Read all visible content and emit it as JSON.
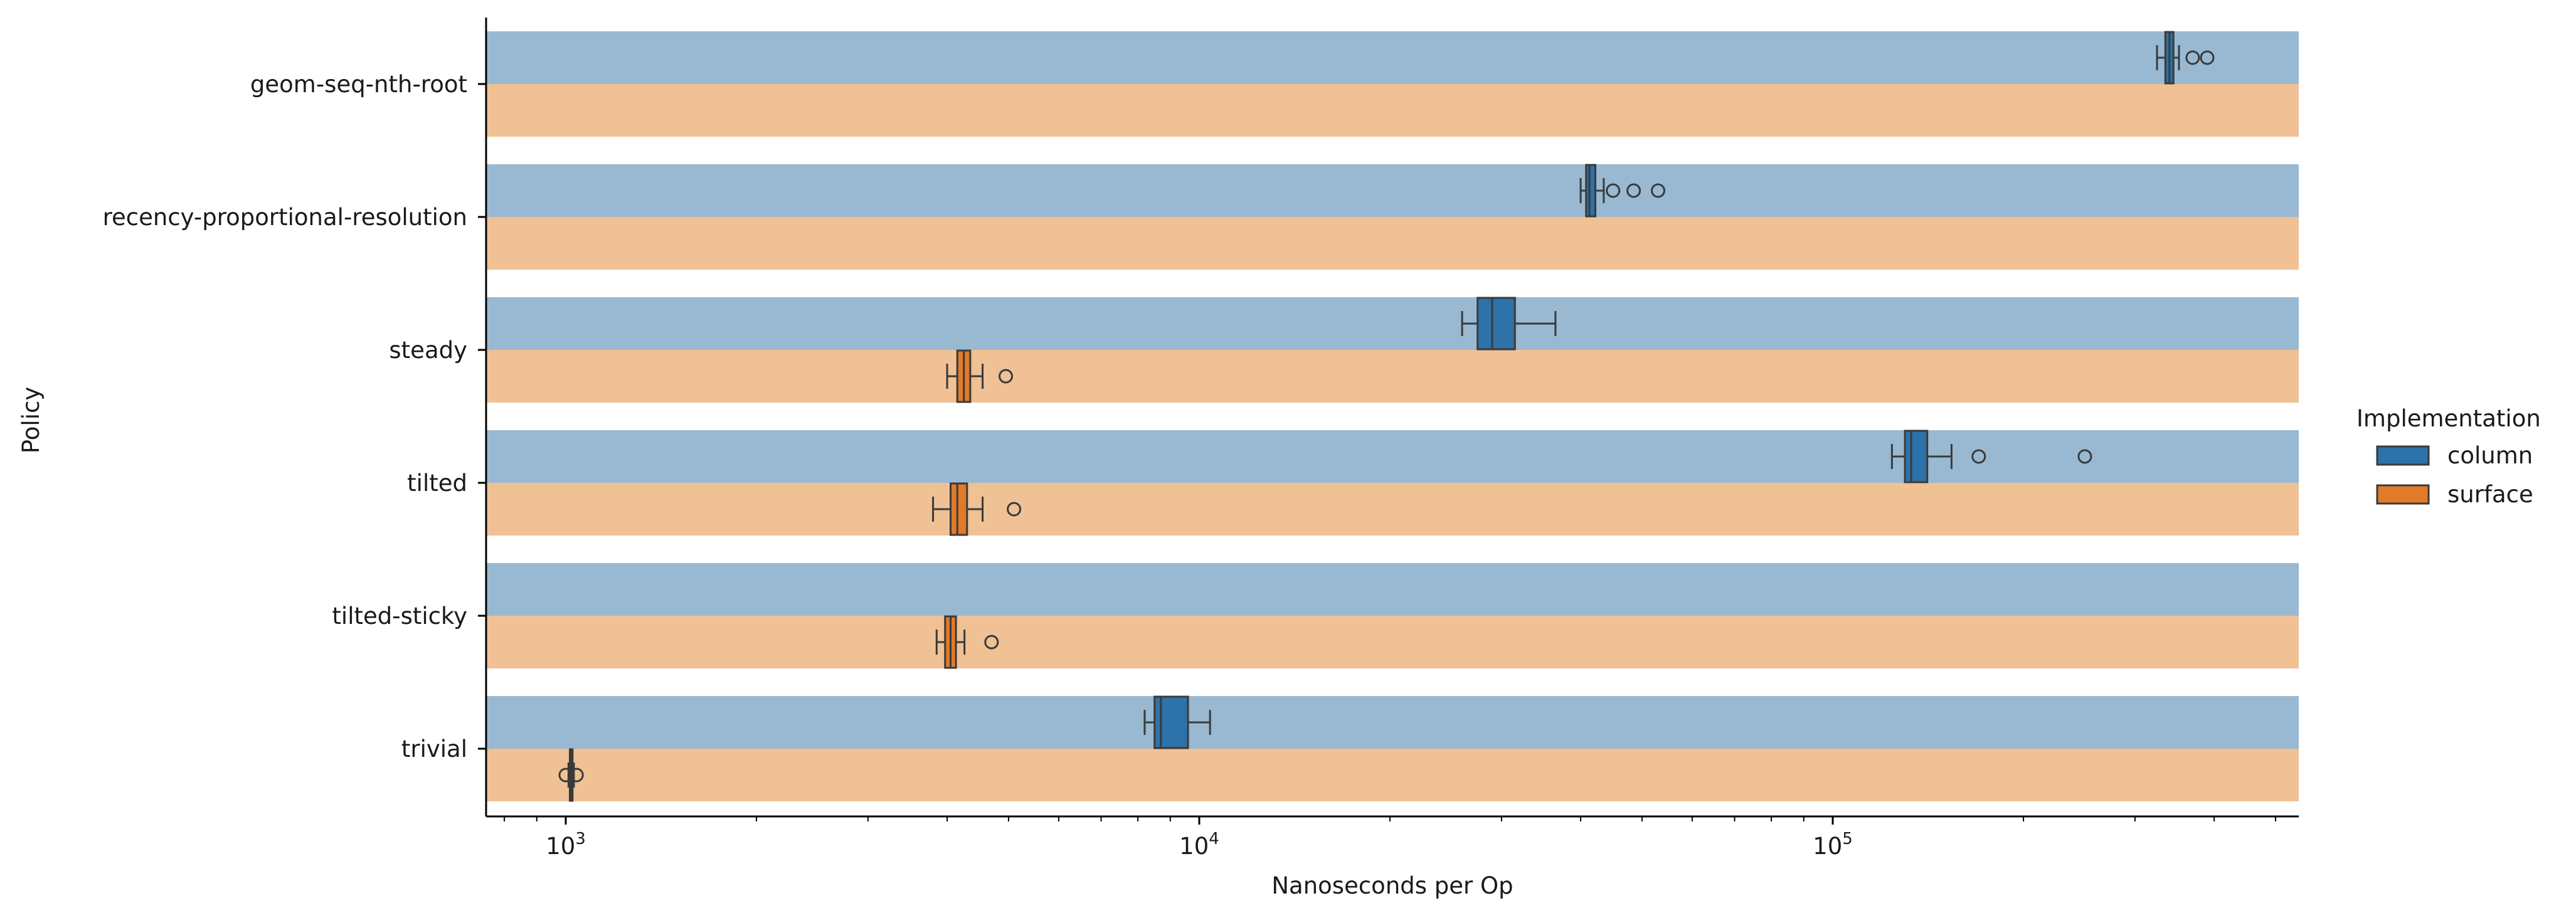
{
  "chart_data": {
    "type": "box",
    "title": "",
    "xlabel": "Nanoseconds per Op",
    "ylabel": "Policy",
    "xscale": "log",
    "xlim": [
      750,
      520000
    ],
    "grid": false,
    "legend": {
      "title": "Implementation",
      "placement": "right",
      "entries": [
        {
          "name": "column",
          "color": "#2d72a8"
        },
        {
          "name": "surface",
          "color": "#e07b28"
        }
      ]
    },
    "band_colors": {
      "column": "#99b9d2",
      "surface": "#f0c194"
    },
    "categories": [
      "geom-seq-nth-root",
      "recency-proportional-resolution",
      "steady",
      "tilted",
      "tilted-sticky",
      "trivial"
    ],
    "x_ticks": [
      {
        "value": 1000,
        "label": "10",
        "exp": "3"
      },
      {
        "value": 10000,
        "label": "10",
        "exp": "4"
      },
      {
        "value": 100000,
        "label": "10",
        "exp": "5"
      }
    ],
    "series": [
      {
        "name": "column",
        "boxes": [
          {
            "category": "geom-seq-nth-root",
            "whisker_low": 325000,
            "q1": 335000,
            "median": 340000,
            "q3": 345000,
            "whisker_high": 352000,
            "outliers": [
              370000,
              390000
            ]
          },
          {
            "category": "recency-proportional-resolution",
            "whisker_low": 40000,
            "q1": 40800,
            "median": 41300,
            "q3": 42200,
            "whisker_high": 43500,
            "outliers": [
              45000,
              48500,
              53000
            ]
          },
          {
            "category": "steady",
            "whisker_low": 26000,
            "q1": 27500,
            "median": 29000,
            "q3": 31500,
            "whisker_high": 36500,
            "outliers": []
          },
          {
            "category": "tilted",
            "whisker_low": 124000,
            "q1": 130000,
            "median": 133000,
            "q3": 141000,
            "whisker_high": 154000,
            "outliers": [
              170000,
              250000
            ]
          },
          {
            "category": "trivial",
            "whisker_low": 8200,
            "q1": 8500,
            "median": 8700,
            "q3": 9600,
            "whisker_high": 10400,
            "outliers": []
          }
        ]
      },
      {
        "name": "surface",
        "boxes": [
          {
            "category": "steady",
            "whisker_low": 4000,
            "q1": 4150,
            "median": 4250,
            "q3": 4350,
            "whisker_high": 4550,
            "outliers": [
              4950
            ]
          },
          {
            "category": "tilted",
            "whisker_low": 3800,
            "q1": 4050,
            "median": 4150,
            "q3": 4300,
            "whisker_high": 4550,
            "outliers": [
              5100
            ]
          },
          {
            "category": "tilted-sticky",
            "whisker_low": 3850,
            "q1": 3970,
            "median": 4050,
            "q3": 4130,
            "whisker_high": 4260,
            "outliers": [
              4700
            ]
          },
          {
            "category": "trivial",
            "whisker_low": 1010,
            "q1": 1015,
            "median": 1020,
            "q3": 1025,
            "whisker_high": 1030,
            "outliers": [
              1000,
              1040
            ]
          }
        ]
      }
    ]
  }
}
